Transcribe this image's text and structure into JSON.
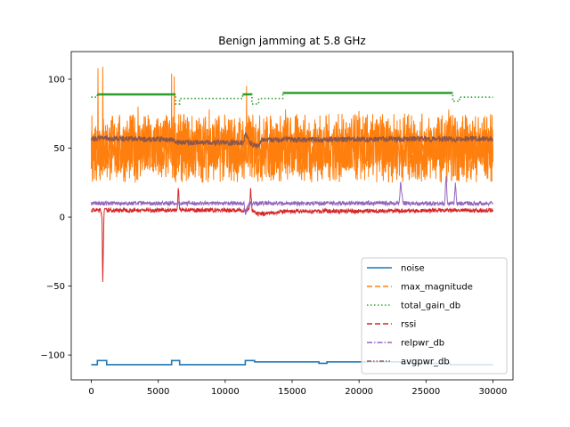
{
  "chart_data": {
    "type": "line",
    "title": "Benign jamming at 5.8 GHz",
    "xlabel": "",
    "ylabel": "",
    "xlim": [
      -1500,
      31500
    ],
    "ylim": [
      -118,
      120
    ],
    "xticks": [
      0,
      5000,
      10000,
      15000,
      20000,
      25000,
      30000
    ],
    "yticks": [
      -100,
      -50,
      0,
      50,
      100
    ],
    "grid": false,
    "legend_position": "lower-right",
    "series": [
      {
        "name": "noise",
        "color": "#1f77b4",
        "style": "solid",
        "points": [
          [
            0,
            -107
          ],
          [
            450,
            -107
          ],
          [
            450,
            -104
          ],
          [
            1150,
            -104
          ],
          [
            1150,
            -107
          ],
          [
            6000,
            -107
          ],
          [
            6000,
            -104
          ],
          [
            6600,
            -104
          ],
          [
            6600,
            -107
          ],
          [
            11500,
            -107
          ],
          [
            11500,
            -104
          ],
          [
            12200,
            -104
          ],
          [
            12200,
            -105
          ],
          [
            17000,
            -105
          ],
          [
            17000,
            -106
          ],
          [
            17600,
            -106
          ],
          [
            17600,
            -105
          ],
          [
            23200,
            -105
          ],
          [
            23200,
            -106
          ],
          [
            26800,
            -106
          ],
          [
            26800,
            -107
          ],
          [
            30000,
            -107
          ]
        ]
      },
      {
        "name": "max_magnitude",
        "color": "#ff7f0e",
        "style": "dashed",
        "band": {
          "low": 35,
          "high": 65,
          "spikes": [
            [
              500,
              108
            ],
            [
              850,
              109
            ],
            [
              6000,
              104
            ],
            [
              6200,
              102
            ],
            [
              11600,
              95
            ],
            [
              23400,
              75
            ],
            [
              26700,
              78
            ],
            [
              27200,
              72
            ],
            [
              14500,
              78
            ],
            [
              3500,
              80
            ],
            [
              8800,
              78
            ],
            [
              20000,
              77
            ]
          ]
        }
      },
      {
        "name": "total_gain_db",
        "color": "#2ca02c",
        "style": "dotted",
        "points": [
          [
            0,
            87
          ],
          [
            450,
            87
          ],
          [
            450,
            89
          ],
          [
            6300,
            89
          ],
          [
            6300,
            82
          ],
          [
            6600,
            82
          ],
          [
            6600,
            86
          ],
          [
            11300,
            86
          ],
          [
            11300,
            89
          ],
          [
            12000,
            89
          ],
          [
            12000,
            82
          ],
          [
            12500,
            82
          ],
          [
            12500,
            86
          ],
          [
            14300,
            86
          ],
          [
            14300,
            90
          ],
          [
            27000,
            90
          ],
          [
            27000,
            84
          ],
          [
            27500,
            84
          ],
          [
            27500,
            87
          ],
          [
            30000,
            87
          ]
        ]
      },
      {
        "name": "rssi",
        "color": "#d62728",
        "style": "dashed",
        "band": {
          "low": 3,
          "high": 6
        },
        "points": [
          [
            0,
            5
          ],
          [
            700,
            5
          ],
          [
            800,
            0
          ],
          [
            850,
            -47
          ],
          [
            900,
            -20
          ],
          [
            950,
            5
          ],
          [
            6400,
            5
          ],
          [
            6500,
            21
          ],
          [
            6600,
            5
          ],
          [
            11800,
            5
          ],
          [
            11900,
            21
          ],
          [
            12000,
            5
          ],
          [
            12400,
            2
          ],
          [
            14300,
            4
          ],
          [
            30000,
            5
          ]
        ]
      },
      {
        "name": "relpwr_db",
        "color": "#9467bd",
        "style": "dashdot",
        "band": {
          "low": 9,
          "high": 12
        },
        "points": [
          [
            0,
            10
          ],
          [
            11400,
            10
          ],
          [
            11500,
            2
          ],
          [
            11800,
            10
          ],
          [
            23000,
            10
          ],
          [
            23100,
            25
          ],
          [
            23300,
            10
          ],
          [
            26400,
            10
          ],
          [
            26500,
            30
          ],
          [
            26600,
            10
          ],
          [
            27100,
            10
          ],
          [
            27200,
            25
          ],
          [
            27300,
            10
          ],
          [
            30000,
            10
          ]
        ]
      },
      {
        "name": "avgpwr_db",
        "color": "#8c564b",
        "style": "dashdotdot",
        "band": {
          "low": 54,
          "high": 58
        },
        "points": [
          [
            0,
            56
          ],
          [
            600,
            58
          ],
          [
            1100,
            57
          ],
          [
            6200,
            56
          ],
          [
            6400,
            54
          ],
          [
            11400,
            54
          ],
          [
            11500,
            62
          ],
          [
            11800,
            54
          ],
          [
            12500,
            51
          ],
          [
            12700,
            56
          ],
          [
            30000,
            57
          ]
        ]
      }
    ]
  }
}
